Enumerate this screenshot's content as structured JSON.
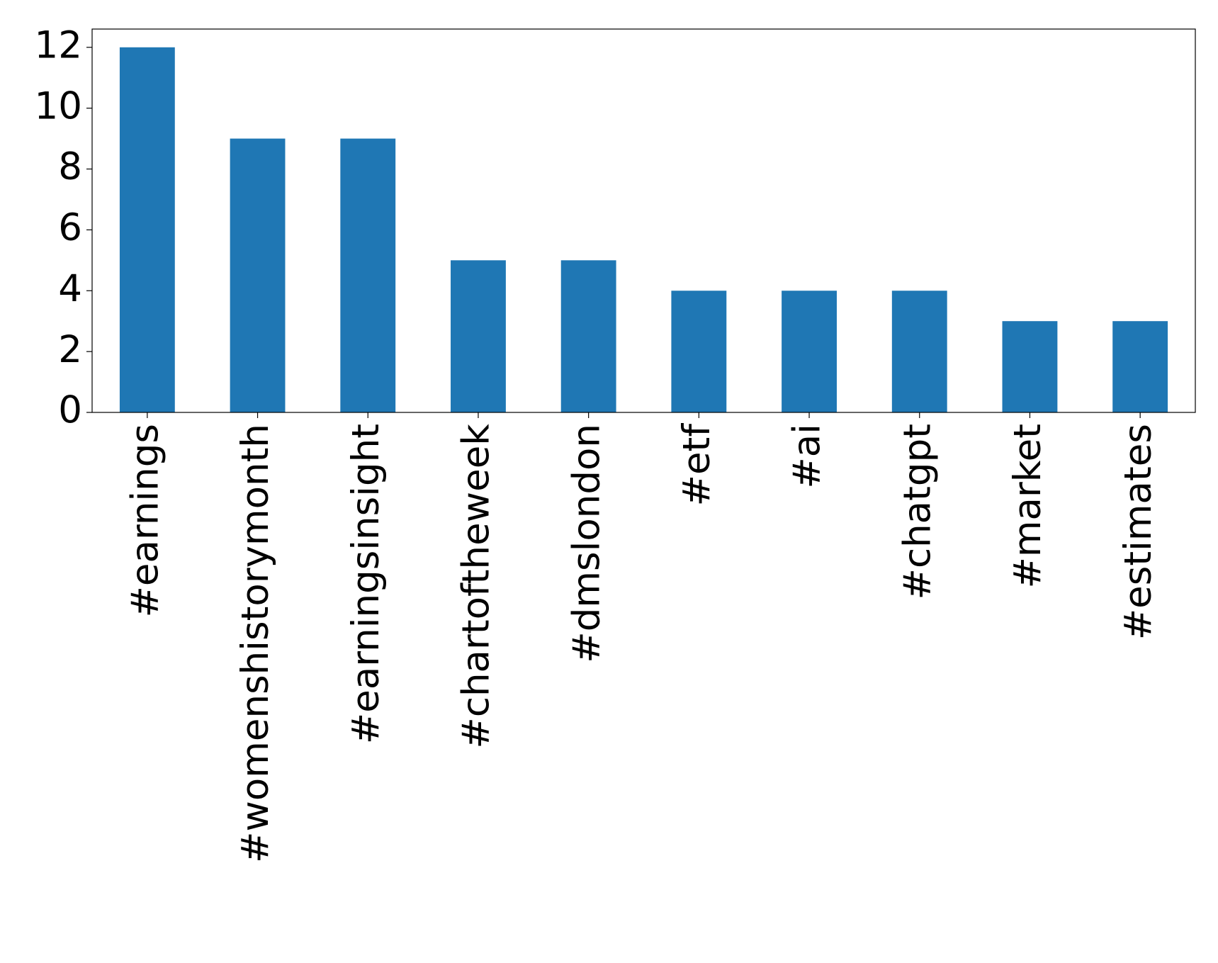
{
  "chart_data": {
    "type": "bar",
    "categories": [
      "#earnings",
      "#womenshistorymonth",
      "#earningsinsight",
      "#chartoftheweek",
      "#dmslondon",
      "#etf",
      "#ai",
      "#chatgpt",
      "#market",
      "#estimates"
    ],
    "values": [
      12,
      9,
      9,
      5,
      5,
      4,
      4,
      4,
      3,
      3
    ],
    "color": "#1f77b4",
    "ylim": [
      0,
      12.6
    ],
    "yticks": [
      0,
      2,
      4,
      6,
      8,
      10,
      12
    ],
    "grid": false
  }
}
